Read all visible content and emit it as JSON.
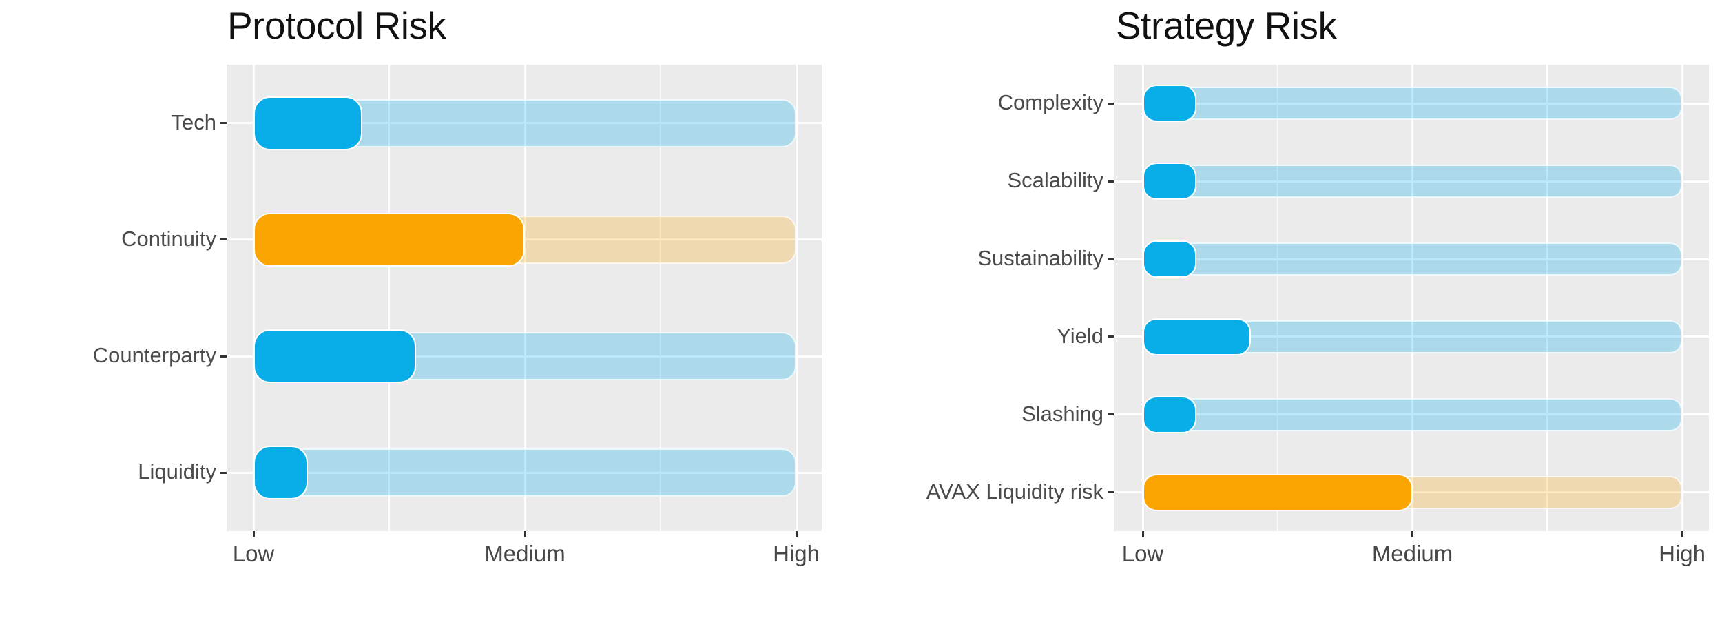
{
  "figure": {
    "background": "#FFFFFF",
    "panel_background": "#EBEBEB",
    "gridline_color": "#FFFFFF",
    "text_color": "#4B4B4B",
    "title_color": "#111111"
  },
  "chart_data": [
    {
      "type": "bar",
      "subtype": "horizontal-bullet",
      "title": "Protocol Risk",
      "categories": [
        "Tech",
        "Continuity",
        "Counterparty",
        "Liquidity"
      ],
      "values": [
        2,
        5,
        3,
        1
      ],
      "track_max": 10,
      "xlim": [
        0,
        10
      ],
      "x_tick_values": [
        0,
        5,
        10
      ],
      "x_tick_labels": [
        "Low",
        "Medium",
        "High"
      ],
      "x_minor_values": [
        2.5,
        7.5
      ],
      "bar_colors": [
        "#09ADE8",
        "#FBA502",
        "#09ADE8",
        "#09ADE8"
      ],
      "track_colors": [
        "rgba(9,173,232,0.27)",
        "rgba(251,165,2,0.25)",
        "rgba(9,173,232,0.27)",
        "rgba(9,173,232,0.27)"
      ],
      "grid": true,
      "legend": "none",
      "orientation": "horizontal"
    },
    {
      "type": "bar",
      "subtype": "horizontal-bullet",
      "title": "Strategy Risk",
      "categories": [
        "Complexity",
        "Scalability",
        "Sustainability",
        "Yield",
        "Slashing",
        "AVAX Liquidity risk"
      ],
      "values": [
        1,
        1,
        1,
        2,
        1,
        5
      ],
      "track_max": 10,
      "xlim": [
        0,
        10
      ],
      "x_tick_values": [
        0,
        5,
        10
      ],
      "x_tick_labels": [
        "Low",
        "Medium",
        "High"
      ],
      "x_minor_values": [
        2.5,
        7.5
      ],
      "bar_colors": [
        "#09ADE8",
        "#09ADE8",
        "#09ADE8",
        "#09ADE8",
        "#09ADE8",
        "#FBA502"
      ],
      "track_colors": [
        "rgba(9,173,232,0.27)",
        "rgba(9,173,232,0.27)",
        "rgba(9,173,232,0.27)",
        "rgba(9,173,232,0.27)",
        "rgba(9,173,232,0.27)",
        "rgba(251,165,2,0.25)"
      ],
      "grid": true,
      "legend": "none",
      "orientation": "horizontal"
    }
  ]
}
